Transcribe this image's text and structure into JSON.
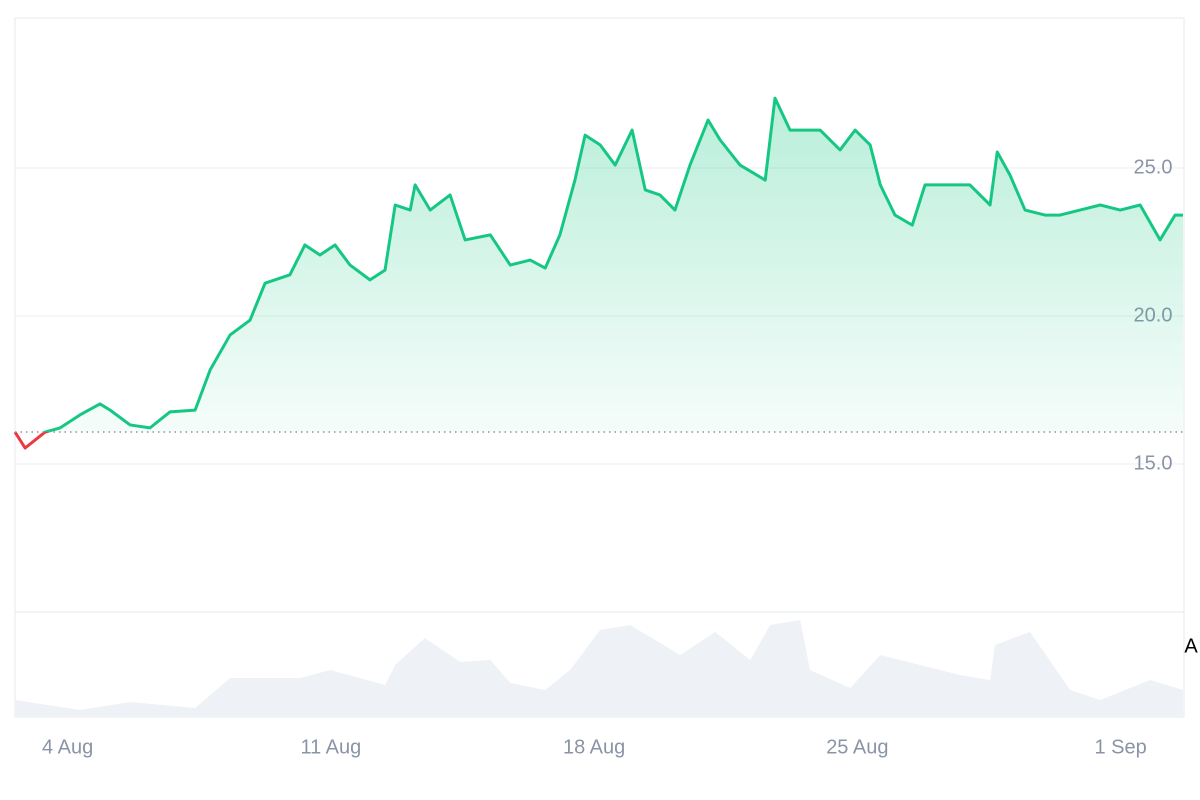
{
  "chart_data": {
    "type": "line",
    "x": [
      2.6,
      2.87,
      3.4,
      3.8,
      4.33,
      4.86,
      5.13,
      5.66,
      6.19,
      6.72,
      7.39,
      7.79,
      8.32,
      8.85,
      9.25,
      9.91,
      10.31,
      10.71,
      11.11,
      11.51,
      12.04,
      12.44,
      12.71,
      13.11,
      13.24,
      13.64,
      14.17,
      14.57,
      15.24,
      15.77,
      16.3,
      16.7,
      17.09,
      17.49,
      17.76,
      18.16,
      18.56,
      19.01,
      19.36,
      19.75,
      20.15,
      20.55,
      21.03,
      21.35,
      21.88,
      22.55,
      22.81,
      23.21,
      24.01,
      24.54,
      24.94,
      25.34,
      25.61,
      26.0,
      26.46,
      26.8,
      27.2,
      27.6,
      27.99,
      28.53,
      28.72,
      29.06,
      29.46,
      29.99,
      30.39,
      30.92,
      31.46,
      31.99,
      32.52,
      33.05,
      33.45,
      33.66
    ],
    "series": [
      {
        "color": "#16c784",
        "down_color": "#ea3943",
        "values": [
          16.08,
          15.54,
          16.08,
          16.22,
          16.66,
          17.03,
          16.82,
          16.32,
          16.22,
          16.76,
          16.82,
          18.18,
          19.36,
          19.86,
          21.11,
          21.39,
          22.4,
          22.06,
          22.4,
          21.72,
          21.22,
          21.55,
          23.75,
          23.58,
          24.43,
          23.58,
          24.09,
          22.57,
          22.74,
          21.72,
          21.89,
          21.62,
          22.74,
          24.59,
          26.11,
          25.78,
          25.1,
          26.28,
          24.26,
          24.09,
          23.58,
          25.1,
          26.62,
          25.95,
          25.1,
          24.59,
          27.36,
          26.28,
          26.28,
          25.61,
          26.28,
          25.78,
          24.43,
          23.41,
          23.07,
          24.43,
          24.43,
          24.43,
          24.43,
          23.75,
          25.54,
          24.76,
          23.58,
          23.41,
          23.41,
          23.58,
          23.75,
          23.58,
          23.75,
          22.57,
          23.41,
          23.41
        ]
      }
    ],
    "baseline": 16.08,
    "volume": {
      "color": "#eef1f5",
      "ylim": [
        0,
        100
      ],
      "x": [
        2.6,
        4.33,
        5.66,
        7.39,
        8.32,
        10.18,
        10.98,
        12.44,
        12.71,
        13.5,
        14.44,
        15.24,
        15.77,
        16.7,
        17.36,
        18.16,
        18.96,
        20.29,
        21.22,
        22.15,
        22.68,
        23.48,
        23.74,
        24.81,
        25.61,
        27.73,
        28.53,
        28.66,
        29.59,
        30.66,
        31.46,
        32.79,
        33.66
      ],
      "values": [
        16.2,
        6.7,
        14.3,
        8.6,
        37.1,
        37.1,
        44.8,
        30.5,
        49.5,
        75.2,
        52.4,
        54.3,
        32.4,
        25.7,
        44.8,
        82.9,
        87.6,
        59.0,
        81.0,
        54.3,
        87.6,
        92.4,
        44.8,
        27.6,
        59.0,
        40.0,
        35.2,
        68.6,
        81.0,
        25.7,
        16.2,
        35.2,
        25.7
      ]
    },
    "xlim": [
      2.6,
      33.66
    ],
    "xticks": [
      {
        "value": 4,
        "label": "4 Aug"
      },
      {
        "value": 11,
        "label": "11 Aug"
      },
      {
        "value": 18,
        "label": "18 Aug"
      },
      {
        "value": 25,
        "label": "25 Aug"
      },
      {
        "value": 32,
        "label": "1 Sep"
      }
    ],
    "ylim": [
      10,
      30
    ],
    "yticks": [
      {
        "value": 15,
        "label": "15.0"
      },
      {
        "value": 20,
        "label": "20.0"
      },
      {
        "value": 25,
        "label": "25.0"
      }
    ],
    "grid": true,
    "annotation": "A"
  }
}
